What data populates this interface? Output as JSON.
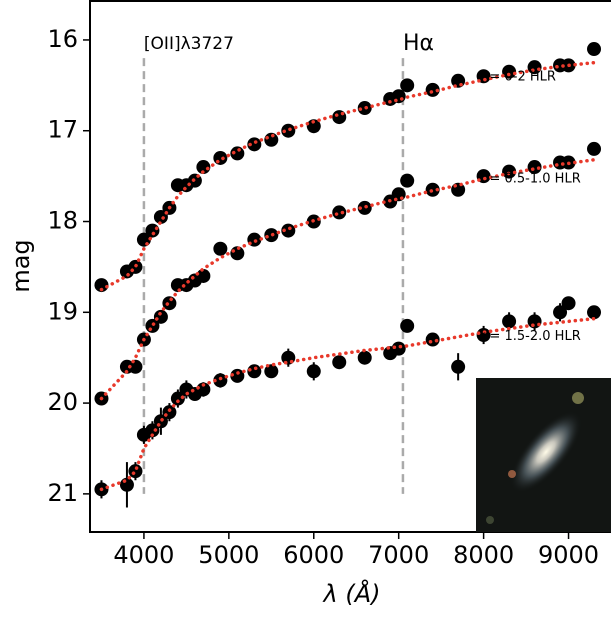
{
  "chart_data": {
    "type": "scatter",
    "xlabel": "λ (Å)",
    "ylabel": "mag",
    "x": [
      3500,
      3800,
      3900,
      4000,
      4100,
      4200,
      4300,
      4400,
      4500,
      4600,
      4700,
      4900,
      5100,
      5300,
      5500,
      5700,
      6000,
      6300,
      6600,
      6900,
      7000,
      7100,
      7400,
      7700,
      8000,
      8300,
      8600,
      8900,
      9000,
      9300
    ],
    "series": [
      {
        "name": "r = 0-2 HLR",
        "color": "#000000",
        "model_color": "#e8392b",
        "values": [
          18.7,
          18.55,
          18.5,
          18.2,
          18.1,
          17.95,
          17.85,
          17.6,
          17.6,
          17.55,
          17.4,
          17.3,
          17.25,
          17.15,
          17.1,
          17.0,
          16.95,
          16.85,
          16.75,
          16.65,
          16.62,
          16.5,
          16.55,
          16.45,
          16.4,
          16.35,
          16.3,
          16.28,
          16.28,
          16.1
        ],
        "model": [
          18.75,
          18.6,
          18.5,
          18.3,
          18.15,
          18.0,
          17.85,
          17.72,
          17.62,
          17.53,
          17.45,
          17.32,
          17.22,
          17.13,
          17.06,
          16.99,
          16.9,
          16.82,
          16.75,
          16.68,
          16.66,
          16.63,
          16.57,
          16.5,
          16.44,
          16.38,
          16.33,
          16.29,
          16.28,
          16.25
        ]
      },
      {
        "name": "r = 0.5-1.0 HLR",
        "color": "#000000",
        "model_color": "#e8392b",
        "values": [
          19.95,
          19.6,
          19.6,
          19.3,
          19.15,
          19.05,
          18.9,
          18.7,
          18.7,
          18.65,
          18.6,
          18.3,
          18.35,
          18.2,
          18.15,
          18.1,
          18.0,
          17.9,
          17.85,
          17.78,
          17.7,
          17.55,
          17.65,
          17.65,
          17.5,
          17.45,
          17.4,
          17.35,
          17.35,
          17.2
        ],
        "model": [
          19.95,
          19.65,
          19.5,
          19.3,
          19.15,
          19.0,
          18.88,
          18.77,
          18.68,
          18.6,
          18.52,
          18.4,
          18.3,
          18.22,
          18.15,
          18.08,
          17.99,
          17.91,
          17.84,
          17.77,
          17.75,
          17.73,
          17.66,
          17.6,
          17.53,
          17.47,
          17.42,
          17.37,
          17.36,
          17.32
        ]
      },
      {
        "name": "r = 1.5-2.0 HLR",
        "color": "#000000",
        "model_color": "#e8392b",
        "values": [
          20.95,
          20.9,
          20.75,
          20.35,
          20.3,
          20.2,
          20.1,
          19.95,
          19.85,
          19.9,
          19.85,
          19.75,
          19.7,
          19.65,
          19.65,
          19.5,
          19.65,
          19.55,
          19.5,
          19.45,
          19.4,
          19.15,
          19.3,
          19.6,
          19.25,
          19.1,
          19.1,
          19.0,
          18.9,
          19.0
        ],
        "errors": [
          0.1,
          0.25,
          0.1,
          0.1,
          0.1,
          0.15,
          0.1,
          0.1,
          0.1,
          0.05,
          0.08,
          0.08,
          0.05,
          0.05,
          0.05,
          0.1,
          0.1,
          0.05,
          0.05,
          0.05,
          0.05,
          0.05,
          0.05,
          0.15,
          0.1,
          0.1,
          0.1,
          0.1,
          0.05,
          0.05
        ],
        "model": [
          20.95,
          20.85,
          20.75,
          20.5,
          20.35,
          20.2,
          20.08,
          19.98,
          19.9,
          19.85,
          19.8,
          19.73,
          19.67,
          19.62,
          19.58,
          19.55,
          19.5,
          19.46,
          19.42,
          19.39,
          19.38,
          19.37,
          19.32,
          19.27,
          19.22,
          19.18,
          19.14,
          19.11,
          19.1,
          19.07
        ]
      }
    ],
    "lines": [
      {
        "label": "[OII]λ3727",
        "x": 4000,
        "y": [
          16.2,
          21
        ]
      },
      {
        "label": "Hα",
        "x": 7050,
        "y": [
          16.2,
          21
        ]
      }
    ],
    "xlim": [
      3365,
      9500
    ],
    "ylim": [
      21.42,
      15.56
    ],
    "xticks": [
      4000,
      5000,
      6000,
      7000,
      8000,
      9000
    ],
    "yticks": [
      16,
      17,
      18,
      19,
      20,
      21
    ]
  }
}
